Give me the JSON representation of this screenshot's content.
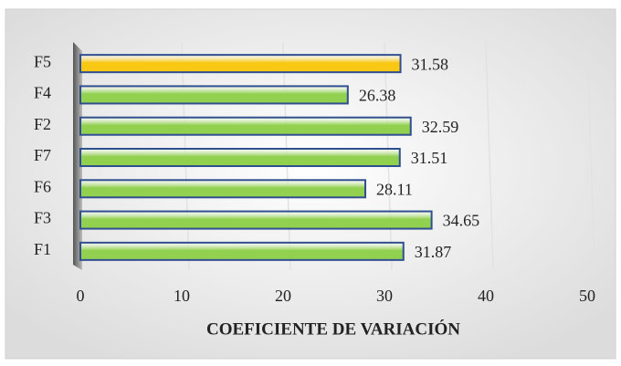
{
  "chart_data": {
    "type": "bar",
    "orientation": "horizontal",
    "categories": [
      "F5",
      "F4",
      "F2",
      "F7",
      "F6",
      "F3",
      "F1"
    ],
    "values": [
      31.58,
      26.38,
      32.59,
      31.51,
      28.11,
      34.65,
      31.87
    ],
    "colors": [
      "#f8c814",
      "#92d050",
      "#92d050",
      "#92d050",
      "#92d050",
      "#92d050",
      "#92d050"
    ],
    "xlim": [
      0,
      50
    ],
    "xticks": [
      0,
      10,
      20,
      30,
      40,
      50
    ],
    "x_label": "COEFICIENTE DE VARIACIÓN",
    "grid": true,
    "data_labels": true
  }
}
